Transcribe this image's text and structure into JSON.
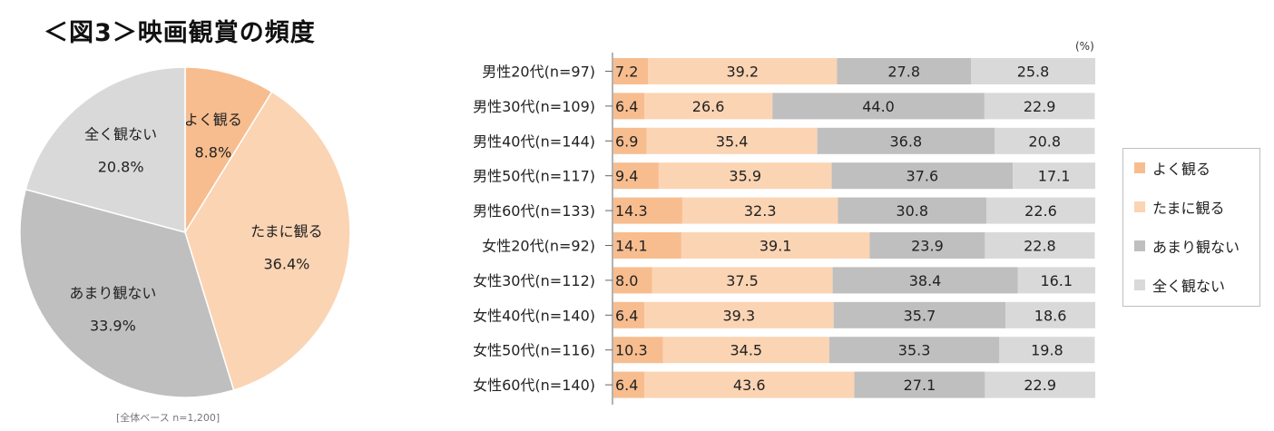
{
  "title": "＜図3＞映画観賞の頻度",
  "pie_note": "[全体ベース n=1,200]",
  "unit": "(%)",
  "colors": {
    "often": "#f7bd8f",
    "sometimes": "#fbd4b3",
    "rarely": "#bfbfbf",
    "never": "#d9d9d9"
  },
  "legend": [
    {
      "label": "よく観る",
      "color": "#f7bd8f"
    },
    {
      "label": "たまに観る",
      "color": "#fbd4b3"
    },
    {
      "label": "あまり観ない",
      "color": "#bfbfbf"
    },
    {
      "label": "全く観ない",
      "color": "#d9d9d9"
    }
  ],
  "chart_data": [
    {
      "type": "pie",
      "title": "",
      "slices": [
        {
          "label": "よく観る",
          "value": 8.8,
          "value_text": "8.8%",
          "color": "#f7bd8f"
        },
        {
          "label": "たまに観る",
          "value": 36.4,
          "value_text": "36.4%",
          "color": "#fbd4b3"
        },
        {
          "label": "あまり観ない",
          "value": 33.9,
          "value_text": "33.9%",
          "color": "#bfbfbf"
        },
        {
          "label": "全く観ない",
          "value": 20.8,
          "value_text": "20.8%",
          "color": "#d9d9d9"
        }
      ]
    },
    {
      "type": "bar",
      "orientation": "horizontal",
      "stacked": true,
      "categories": [
        "男性20代(n=97)",
        "男性30代(n=109)",
        "男性40代(n=144)",
        "男性50代(n=117)",
        "男性60代(n=133)",
        "女性20代(n=92)",
        "女性30代(n=112)",
        "女性40代(n=140)",
        "女性50代(n=116)",
        "女性60代(n=140)"
      ],
      "series": [
        {
          "name": "よく観る",
          "color": "#f7bd8f",
          "values": [
            7.2,
            6.4,
            6.9,
            9.4,
            14.3,
            14.1,
            8.0,
            6.4,
            10.3,
            6.4
          ],
          "labels": [
            "7.2",
            "6.4",
            "6.9",
            "9.4",
            "14.3",
            "14.1",
            "8.0",
            "6.4",
            "10.3",
            "6.4"
          ]
        },
        {
          "name": "たまに観る",
          "color": "#fbd4b3",
          "values": [
            39.2,
            26.6,
            35.4,
            35.9,
            32.3,
            39.1,
            37.5,
            39.3,
            34.5,
            43.6
          ],
          "labels": [
            "39.2",
            "26.6",
            "35.4",
            "35.9",
            "32.3",
            "39.1",
            "37.5",
            "39.3",
            "34.5",
            "43.6"
          ]
        },
        {
          "name": "あまり観ない",
          "color": "#bfbfbf",
          "values": [
            27.8,
            44.0,
            36.8,
            37.6,
            30.8,
            23.9,
            38.4,
            35.7,
            35.3,
            27.1
          ],
          "labels": [
            "27.8",
            "44.0",
            "36.8",
            "37.6",
            "30.8",
            "23.9",
            "38.4",
            "35.7",
            "35.3",
            "27.1"
          ]
        },
        {
          "name": "全く観ない",
          "color": "#d9d9d9",
          "values": [
            25.8,
            22.9,
            20.8,
            17.1,
            22.6,
            22.8,
            16.1,
            18.6,
            19.8,
            22.9
          ],
          "labels": [
            "25.8",
            "22.9",
            "20.8",
            "17.1",
            "22.6",
            "22.8",
            "16.1",
            "18.6",
            "19.8",
            "22.9"
          ]
        }
      ],
      "xlim": [
        0,
        100
      ],
      "legend_position": "right"
    }
  ]
}
